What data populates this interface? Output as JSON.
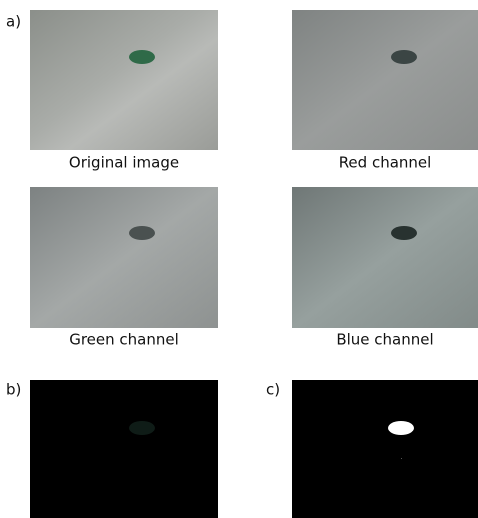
{
  "panels": {
    "labels": [
      "a)",
      "b)",
      "c)"
    ]
  },
  "captions": [
    "Original image",
    "Red channel",
    "Green channel",
    "Blue channel"
  ]
}
